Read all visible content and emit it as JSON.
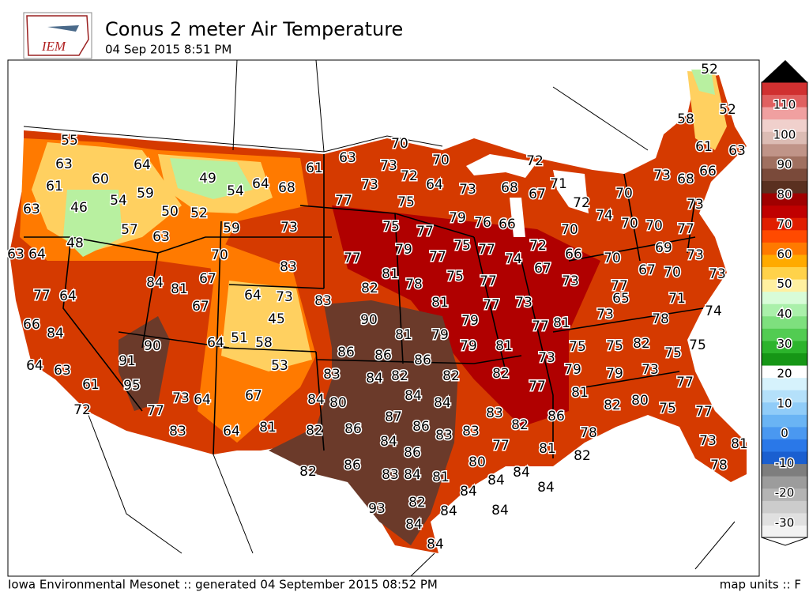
{
  "header": {
    "logo": "IEM",
    "title": "Conus 2 meter Air Temperature",
    "subtitle": "04 Sep 2015 8:51 PM"
  },
  "footer": {
    "left": "Iowa Environmental Mesonet :: generated 04 September 2015 08:52 PM",
    "right": "map units :: F"
  },
  "colorbar": {
    "ticks": [
      110,
      100,
      90,
      80,
      70,
      60,
      50,
      40,
      30,
      20,
      10,
      0,
      -10,
      -20,
      -30
    ]
  },
  "stations": [
    52,
    52,
    58,
    61,
    63,
    66,
    73,
    68,
    70,
    73,
    70,
    70,
    77,
    69,
    73,
    70,
    73,
    71,
    74,
    78,
    82,
    75,
    75,
    73,
    77,
    77,
    75,
    80,
    82,
    73,
    81,
    78,
    79,
    75,
    73,
    65,
    77,
    67,
    70,
    66,
    73,
    70,
    74,
    72,
    71,
    67,
    72,
    68,
    66,
    72,
    67,
    74,
    77,
    73,
    64,
    72,
    70,
    70,
    73,
    73,
    75,
    79,
    76,
    77,
    75,
    77,
    79,
    75,
    77,
    81,
    78,
    75,
    77,
    77,
    73,
    77,
    81,
    75,
    73,
    79,
    81,
    77,
    86,
    78,
    82,
    81,
    82,
    77,
    83,
    83,
    86,
    80,
    84,
    84,
    84,
    84,
    84,
    84,
    82,
    84,
    84,
    93,
    81,
    84,
    83,
    86,
    82,
    86,
    84,
    83,
    87,
    84,
    84,
    86,
    82,
    80,
    84,
    83,
    84,
    82,
    86,
    82,
    82,
    79,
    81,
    79,
    79,
    81,
    86,
    86,
    90,
    82,
    83,
    81,
    83,
    73,
    77,
    61,
    63,
    68,
    64,
    54,
    49,
    64,
    59,
    50,
    52,
    59,
    63,
    57,
    70,
    67,
    84,
    81,
    67,
    64,
    73,
    45,
    51,
    58,
    64,
    53,
    67,
    64,
    73,
    64,
    81,
    83,
    77,
    95,
    91,
    90,
    72,
    61,
    63,
    64,
    84,
    66,
    77,
    64,
    63,
    64,
    48,
    63,
    46,
    54,
    61,
    60,
    63,
    55
  ]
}
